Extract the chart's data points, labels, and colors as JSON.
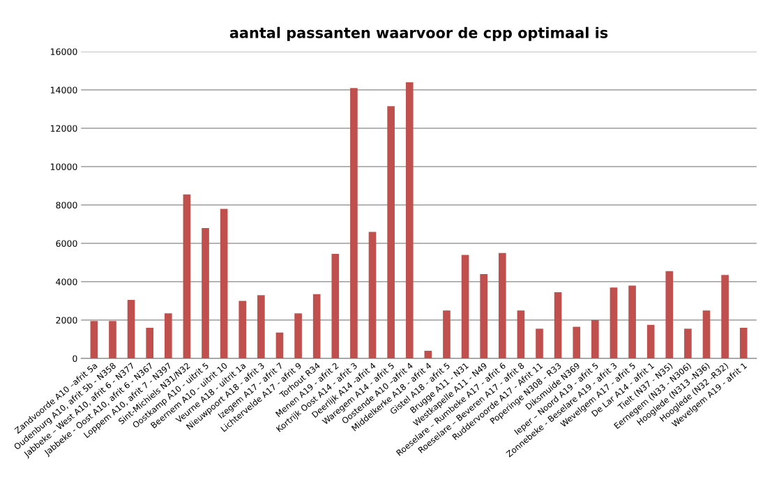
{
  "chart_data": {
    "type": "bar",
    "title": "aantal passanten waarvoor de cpp optimaal is",
    "categories": [
      "Zandvoorde A10 –afrit 5a",
      "Oudenburg A10, afrit 5b - N358",
      "Jabbeke – West A10, afrit 6 - N377",
      "Jabbeke - Oost A10, afrit 6 - N367",
      "Loppem A10, afrit 7 - N397",
      "Sint-Michiels N31/N32",
      "Oostkamp A10 - uitrit 5",
      "Beernem A10 - uitrit 10",
      "Veurne A18 - uitrit 1a",
      "Nieuwpoort A18 - afrit 3",
      "Izegem A17 - afrit 7",
      "Lichtervelde A17 - afrit 9",
      "Torhout R34",
      "Menen A19 - afrit 2",
      "Kortrijk Oost A14 - afrit 3",
      "Deerlijk A14 -afrit 4",
      "Waregem A14 - afrit 5",
      "Oostende A10 –afrit 4",
      "Middelkerke A18 - afrit 4",
      "Gistel A18 - afrit 5",
      "Brugge A11 - N31",
      "Westkapelle A11 - N49",
      "Roeselare – Rumbeke A17 - afrit 6",
      "Roeselare – Beveren A17 - afrit 8",
      "Ruddervoorde A17 - Afrit 11",
      "Poperinge N308 - R33",
      "Diksmuide N369",
      "Ieper – Noord A19 - afrit 5",
      "Zonnebeke - Beselare A19 - afrit 3",
      "Wevelgem A17 - afrit 5",
      "De Lar A14 - afrit 1",
      "Tielt (N37 - N35)",
      "Eernegem (N33 - N306)",
      "Hooglede (N313 -N36)",
      "Hooglede (N32 -R32)",
      "Wevelgem A19 - afrit 1"
    ],
    "values": [
      1950,
      1950,
      3050,
      1600,
      2350,
      8550,
      6800,
      7800,
      3000,
      3300,
      1350,
      2350,
      3350,
      5450,
      14100,
      6600,
      13150,
      14400,
      400,
      2500,
      5400,
      4400,
      5500,
      2500,
      1550,
      3450,
      1650,
      2000,
      3700,
      3800,
      1750,
      4550,
      1550,
      2500,
      4350,
      1600
    ],
    "color": "#c0504d",
    "ylim": [
      0,
      16000
    ],
    "yticks": [
      0,
      2000,
      4000,
      6000,
      8000,
      10000,
      12000,
      14000,
      16000
    ],
    "grid": "y"
  }
}
